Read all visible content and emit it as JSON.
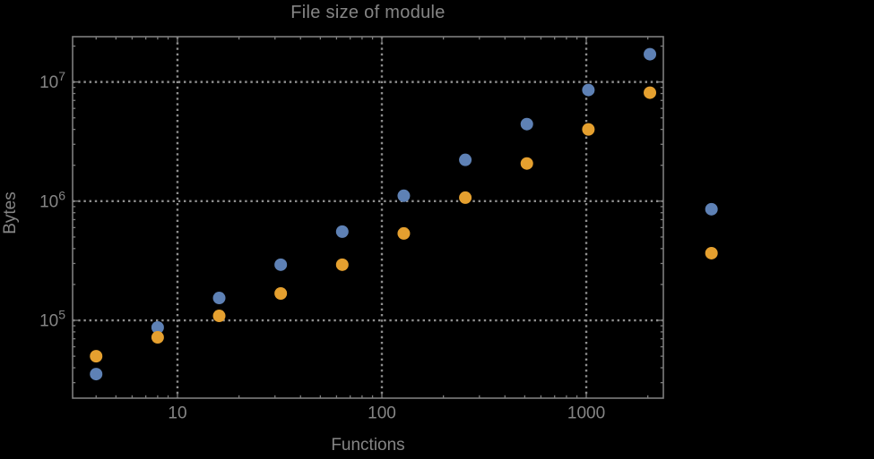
{
  "colors": {
    "background": "#000000",
    "frame": "#7e7e7e",
    "grid": "#8e8e8e",
    "text": "#858585",
    "series_blue": "#5e81b5",
    "series_orange": "#e5a02f"
  },
  "chart_data": {
    "type": "scatter",
    "title": "File size of module",
    "xlabel": "Functions",
    "ylabel": "Bytes",
    "x_scale": "log",
    "y_scale": "log",
    "grid": "dotted-at-major-ticks",
    "legend": "none",
    "frame": true,
    "clip_points": false,
    "x": [
      4,
      8,
      16,
      32,
      64,
      128,
      256,
      512,
      1024,
      2048,
      4096
    ],
    "series": [
      {
        "name": "blue",
        "color": "#5e81b5",
        "values": [
          35400,
          87100,
          154000,
          293000,
          555000,
          1110000,
          2220000,
          4430000,
          8560000,
          17100000,
          856000
        ]
      },
      {
        "name": "orange",
        "color": "#e5a02f",
        "values": [
          50000,
          72000,
          109000,
          168000,
          293000,
          536000,
          1070000,
          2070000,
          4000000,
          8130000,
          366000
        ]
      }
    ],
    "x_major_ticks": [
      10,
      100,
      1000
    ],
    "x_major_labels": [
      "10",
      "100",
      "1000"
    ],
    "y_major_ticks": [
      100000,
      1000000,
      10000000
    ],
    "y_major_labels": [
      {
        "base": "10",
        "exp": "5"
      },
      {
        "base": "10",
        "exp": "6"
      },
      {
        "base": "10",
        "exp": "7"
      }
    ],
    "x_log_range": [
      0.487,
      3.377
    ],
    "y_log_range": [
      4.347,
      7.38
    ]
  }
}
